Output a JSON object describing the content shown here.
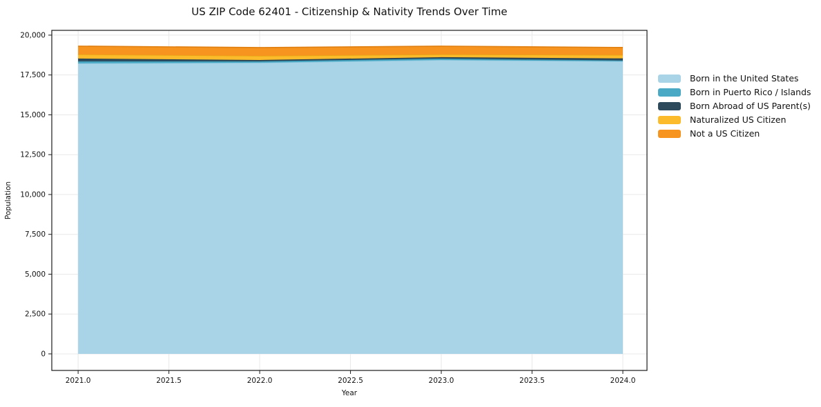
{
  "chart_data": {
    "type": "area",
    "stacked": true,
    "title": "US ZIP Code 62401 - Citizenship & Nativity Trends Over Time",
    "xlabel": "Year",
    "ylabel": "Population",
    "x": [
      2021,
      2022,
      2023,
      2024
    ],
    "series": [
      {
        "name": "Born in the United States",
        "color": "#a9d4e7",
        "edge": "#8ec8df",
        "values": [
          18230,
          18270,
          18440,
          18360
        ]
      },
      {
        "name": "Born in Puerto Rico / Islands",
        "color": "#4aa9c5",
        "edge": "#3b97b2",
        "values": [
          130,
          90,
          90,
          50
        ]
      },
      {
        "name": "Born Abroad of US Parent(s)",
        "color": "#2d4a5c",
        "edge": "#243d4d",
        "values": [
          170,
          80,
          85,
          130
        ]
      },
      {
        "name": "Naturalized US Citizen",
        "color": "#fcbb2a",
        "edge": "#e8a714",
        "values": [
          260,
          260,
          175,
          215
        ]
      },
      {
        "name": "Not a US Citizen",
        "color": "#f6941f",
        "edge": "#e07f10",
        "values": [
          520,
          520,
          520,
          470
        ]
      }
    ],
    "xticks": {
      "values": [
        2021.0,
        2021.5,
        2022.0,
        2022.5,
        2023.0,
        2023.5,
        2024.0
      ],
      "labels": [
        "2021.0",
        "2021.5",
        "2022.0",
        "2022.5",
        "2023.0",
        "2023.5",
        "2024.0"
      ]
    },
    "yticks": {
      "values": [
        0,
        2500,
        5000,
        7500,
        10000,
        12500,
        15000,
        17500,
        20000
      ],
      "labels": [
        "0",
        "2,500",
        "5,000",
        "7,500",
        "10,000",
        "12,500",
        "15,000",
        "17,500",
        "20,000"
      ]
    },
    "xlim": [
      2020.855,
      2024.133
    ],
    "ylim": [
      -1040,
      20300
    ],
    "grid": true,
    "grid_color": "#e8e8e8",
    "frame_color": "#1a1a1a",
    "tick_color": "#1a1a1a",
    "legend_position": "right-outside"
  }
}
